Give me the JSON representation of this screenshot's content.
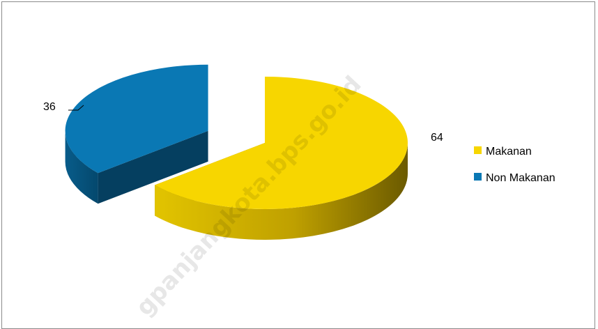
{
  "chart_data": {
    "type": "pie",
    "style": "3d-exploded",
    "categories": [
      "Makanan",
      "Non Makanan"
    ],
    "values": [
      64,
      36
    ],
    "colors": [
      "#f7d600",
      "#0a78b4"
    ],
    "title": "",
    "legend": {
      "position": "right",
      "entries": [
        {
          "label": "Makanan",
          "color": "#f7d600"
        },
        {
          "label": "Non Makanan",
          "color": "#0a78b4"
        }
      ]
    },
    "data_labels": [
      "64",
      "36"
    ]
  },
  "watermark": "gpanjangkota.bps.go.id"
}
